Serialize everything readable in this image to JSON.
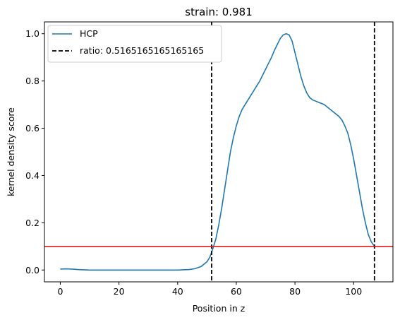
{
  "chart_data": {
    "type": "line",
    "title": "strain: 0.981",
    "xlabel": "Position in z",
    "ylabel": "kernel density score",
    "xlim": [
      -5.4,
      113.4
    ],
    "ylim": [
      -0.05,
      1.05
    ],
    "xticks": [
      0,
      20,
      40,
      60,
      80,
      100
    ],
    "yticks": [
      0.0,
      0.2,
      0.4,
      0.6,
      0.8,
      1.0
    ],
    "xtick_labels": [
      "0",
      "20",
      "40",
      "60",
      "80",
      "100"
    ],
    "ytick_labels": [
      "0.0",
      "0.2",
      "0.4",
      "0.6",
      "0.8",
      "1.0"
    ],
    "grid": false,
    "legend_position": "top-left",
    "series": [
      {
        "name": "HCP",
        "color": "#1f77b4",
        "style": "solid",
        "x": [
          0,
          2,
          4,
          6,
          8,
          10,
          14,
          20,
          30,
          40,
          44,
          46,
          48,
          50,
          51,
          52,
          53,
          54,
          55,
          56,
          57,
          58,
          59,
          60,
          61,
          62,
          63,
          64,
          65,
          66,
          67,
          68,
          69,
          70,
          71,
          72,
          73,
          74,
          75,
          76,
          77,
          78,
          79,
          80,
          81,
          82,
          83,
          84,
          85,
          86,
          87,
          88,
          89,
          90,
          91,
          92,
          93,
          94,
          95,
          96,
          97,
          98,
          99,
          100,
          101,
          102,
          103,
          104,
          105,
          106,
          107.1
        ],
        "y": [
          0.004,
          0.005,
          0.004,
          0.002,
          0.001,
          0.0,
          0.0,
          0.0,
          0.0,
          0.0,
          0.002,
          0.006,
          0.015,
          0.035,
          0.055,
          0.09,
          0.13,
          0.19,
          0.26,
          0.34,
          0.42,
          0.5,
          0.56,
          0.61,
          0.65,
          0.68,
          0.7,
          0.72,
          0.74,
          0.76,
          0.78,
          0.8,
          0.825,
          0.85,
          0.875,
          0.9,
          0.93,
          0.955,
          0.98,
          0.995,
          1.0,
          0.995,
          0.97,
          0.92,
          0.87,
          0.82,
          0.78,
          0.75,
          0.73,
          0.72,
          0.715,
          0.71,
          0.705,
          0.7,
          0.69,
          0.68,
          0.67,
          0.66,
          0.65,
          0.635,
          0.61,
          0.58,
          0.53,
          0.47,
          0.4,
          0.33,
          0.26,
          0.2,
          0.15,
          0.12,
          0.1
        ]
      },
      {
        "name": "ratio: 0.5165165165165165",
        "color": "#000000",
        "style": "dashed",
        "vlines": [
          51.6,
          107.1
        ]
      }
    ],
    "hline": {
      "y": 0.1,
      "color": "#e41a1c"
    }
  }
}
